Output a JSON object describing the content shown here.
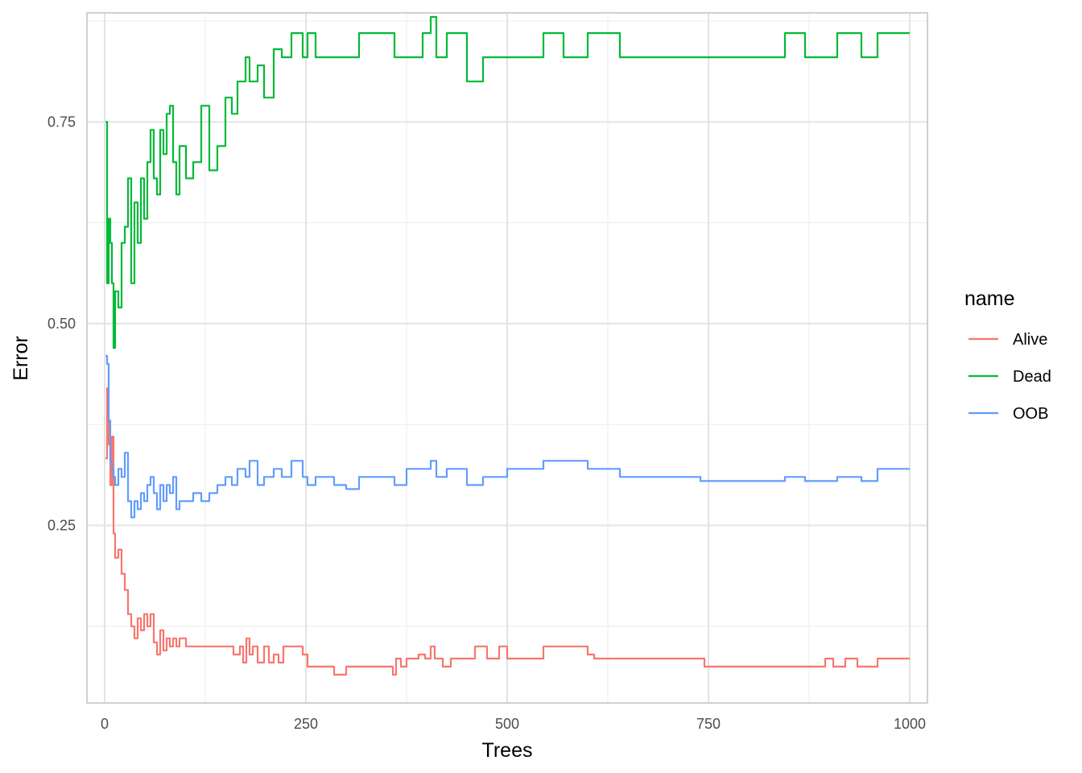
{
  "chart_data": {
    "type": "line",
    "xlabel": "Trees",
    "ylabel": "Error",
    "xlim": [
      -22,
      1022
    ],
    "ylim": [
      0.03,
      0.885
    ],
    "x_ticks": [
      0,
      250,
      500,
      750,
      1000
    ],
    "x_tick_labels": [
      "0",
      "250",
      "500",
      "750",
      "1000"
    ],
    "y_ticks": [
      0.25,
      0.5,
      0.75
    ],
    "y_tick_labels": [
      "0.25",
      "0.50",
      "0.75"
    ],
    "grid": true,
    "legend_title": "name",
    "legend_position": "right",
    "series": [
      {
        "name": "Alive",
        "color": "#F8766D",
        "points": [
          [
            1,
            0.333
          ],
          [
            3,
            0.42
          ],
          [
            5,
            0.35
          ],
          [
            7,
            0.3
          ],
          [
            9,
            0.36
          ],
          [
            11,
            0.24
          ],
          [
            13,
            0.21
          ],
          [
            17,
            0.22
          ],
          [
            21,
            0.19
          ],
          [
            25,
            0.17
          ],
          [
            29,
            0.14
          ],
          [
            33,
            0.125
          ],
          [
            37,
            0.11
          ],
          [
            41,
            0.135
          ],
          [
            45,
            0.12
          ],
          [
            49,
            0.14
          ],
          [
            53,
            0.125
          ],
          [
            57,
            0.14
          ],
          [
            61,
            0.105
          ],
          [
            65,
            0.09
          ],
          [
            69,
            0.12
          ],
          [
            73,
            0.095
          ],
          [
            77,
            0.11
          ],
          [
            81,
            0.1
          ],
          [
            85,
            0.11
          ],
          [
            89,
            0.1
          ],
          [
            93,
            0.11
          ],
          [
            101,
            0.1
          ],
          [
            150,
            0.1
          ],
          [
            160,
            0.09
          ],
          [
            168,
            0.1
          ],
          [
            172,
            0.08
          ],
          [
            176,
            0.11
          ],
          [
            180,
            0.09
          ],
          [
            184,
            0.1
          ],
          [
            190,
            0.08
          ],
          [
            198,
            0.1
          ],
          [
            204,
            0.08
          ],
          [
            210,
            0.09
          ],
          [
            216,
            0.08
          ],
          [
            222,
            0.1
          ],
          [
            246,
            0.09
          ],
          [
            252,
            0.075
          ],
          [
            285,
            0.065
          ],
          [
            300,
            0.075
          ],
          [
            340,
            0.075
          ],
          [
            358,
            0.065
          ],
          [
            362,
            0.085
          ],
          [
            368,
            0.075
          ],
          [
            375,
            0.085
          ],
          [
            390,
            0.09
          ],
          [
            398,
            0.085
          ],
          [
            405,
            0.1
          ],
          [
            410,
            0.085
          ],
          [
            420,
            0.075
          ],
          [
            430,
            0.085
          ],
          [
            460,
            0.1
          ],
          [
            475,
            0.085
          ],
          [
            490,
            0.1
          ],
          [
            500,
            0.085
          ],
          [
            545,
            0.1
          ],
          [
            600,
            0.09
          ],
          [
            608,
            0.085
          ],
          [
            740,
            0.085
          ],
          [
            745,
            0.075
          ],
          [
            890,
            0.075
          ],
          [
            895,
            0.085
          ],
          [
            905,
            0.075
          ],
          [
            920,
            0.085
          ],
          [
            935,
            0.075
          ],
          [
            960,
            0.085
          ],
          [
            1000,
            0.085
          ]
        ]
      },
      {
        "name": "Dead",
        "color": "#00BA38",
        "points": [
          [
            1,
            0.75
          ],
          [
            3,
            0.55
          ],
          [
            5,
            0.63
          ],
          [
            7,
            0.6
          ],
          [
            9,
            0.55
          ],
          [
            11,
            0.47
          ],
          [
            13,
            0.54
          ],
          [
            17,
            0.52
          ],
          [
            21,
            0.6
          ],
          [
            25,
            0.62
          ],
          [
            29,
            0.68
          ],
          [
            33,
            0.55
          ],
          [
            37,
            0.65
          ],
          [
            41,
            0.6
          ],
          [
            45,
            0.68
          ],
          [
            49,
            0.63
          ],
          [
            53,
            0.7
          ],
          [
            57,
            0.74
          ],
          [
            61,
            0.68
          ],
          [
            65,
            0.66
          ],
          [
            69,
            0.74
          ],
          [
            73,
            0.71
          ],
          [
            77,
            0.76
          ],
          [
            81,
            0.77
          ],
          [
            85,
            0.7
          ],
          [
            89,
            0.66
          ],
          [
            93,
            0.72
          ],
          [
            101,
            0.68
          ],
          [
            110,
            0.7
          ],
          [
            120,
            0.77
          ],
          [
            130,
            0.69
          ],
          [
            140,
            0.72
          ],
          [
            150,
            0.78
          ],
          [
            158,
            0.76
          ],
          [
            165,
            0.8
          ],
          [
            175,
            0.83
          ],
          [
            180,
            0.8
          ],
          [
            190,
            0.82
          ],
          [
            198,
            0.78
          ],
          [
            210,
            0.84
          ],
          [
            220,
            0.83
          ],
          [
            232,
            0.86
          ],
          [
            246,
            0.83
          ],
          [
            252,
            0.86
          ],
          [
            262,
            0.83
          ],
          [
            316,
            0.86
          ],
          [
            360,
            0.83
          ],
          [
            395,
            0.86
          ],
          [
            405,
            0.88
          ],
          [
            412,
            0.83
          ],
          [
            425,
            0.86
          ],
          [
            450,
            0.8
          ],
          [
            470,
            0.83
          ],
          [
            500,
            0.83
          ],
          [
            545,
            0.86
          ],
          [
            570,
            0.83
          ],
          [
            600,
            0.86
          ],
          [
            640,
            0.83
          ],
          [
            845,
            0.86
          ],
          [
            870,
            0.83
          ],
          [
            910,
            0.86
          ],
          [
            940,
            0.83
          ],
          [
            960,
            0.86
          ],
          [
            1000,
            0.86
          ]
        ]
      },
      {
        "name": "OOB",
        "color": "#619CFF",
        "points": [
          [
            1,
            0.46
          ],
          [
            3,
            0.45
          ],
          [
            5,
            0.38
          ],
          [
            7,
            0.33
          ],
          [
            9,
            0.32
          ],
          [
            11,
            0.31
          ],
          [
            13,
            0.3
          ],
          [
            17,
            0.32
          ],
          [
            21,
            0.31
          ],
          [
            25,
            0.34
          ],
          [
            29,
            0.28
          ],
          [
            33,
            0.26
          ],
          [
            37,
            0.28
          ],
          [
            41,
            0.27
          ],
          [
            45,
            0.29
          ],
          [
            49,
            0.28
          ],
          [
            53,
            0.3
          ],
          [
            57,
            0.31
          ],
          [
            61,
            0.29
          ],
          [
            65,
            0.27
          ],
          [
            69,
            0.3
          ],
          [
            73,
            0.28
          ],
          [
            77,
            0.3
          ],
          [
            81,
            0.29
          ],
          [
            85,
            0.31
          ],
          [
            89,
            0.27
          ],
          [
            93,
            0.28
          ],
          [
            101,
            0.28
          ],
          [
            110,
            0.29
          ],
          [
            120,
            0.28
          ],
          [
            130,
            0.29
          ],
          [
            140,
            0.3
          ],
          [
            150,
            0.31
          ],
          [
            158,
            0.3
          ],
          [
            165,
            0.32
          ],
          [
            175,
            0.31
          ],
          [
            180,
            0.33
          ],
          [
            190,
            0.3
          ],
          [
            198,
            0.31
          ],
          [
            210,
            0.32
          ],
          [
            220,
            0.31
          ],
          [
            232,
            0.33
          ],
          [
            246,
            0.31
          ],
          [
            252,
            0.3
          ],
          [
            262,
            0.31
          ],
          [
            285,
            0.3
          ],
          [
            300,
            0.295
          ],
          [
            316,
            0.31
          ],
          [
            360,
            0.3
          ],
          [
            375,
            0.32
          ],
          [
            405,
            0.33
          ],
          [
            412,
            0.31
          ],
          [
            425,
            0.32
          ],
          [
            450,
            0.3
          ],
          [
            470,
            0.31
          ],
          [
            500,
            0.32
          ],
          [
            545,
            0.33
          ],
          [
            600,
            0.32
          ],
          [
            640,
            0.31
          ],
          [
            740,
            0.305
          ],
          [
            845,
            0.31
          ],
          [
            870,
            0.305
          ],
          [
            910,
            0.31
          ],
          [
            940,
            0.305
          ],
          [
            960,
            0.32
          ],
          [
            1000,
            0.32
          ]
        ]
      }
    ]
  }
}
